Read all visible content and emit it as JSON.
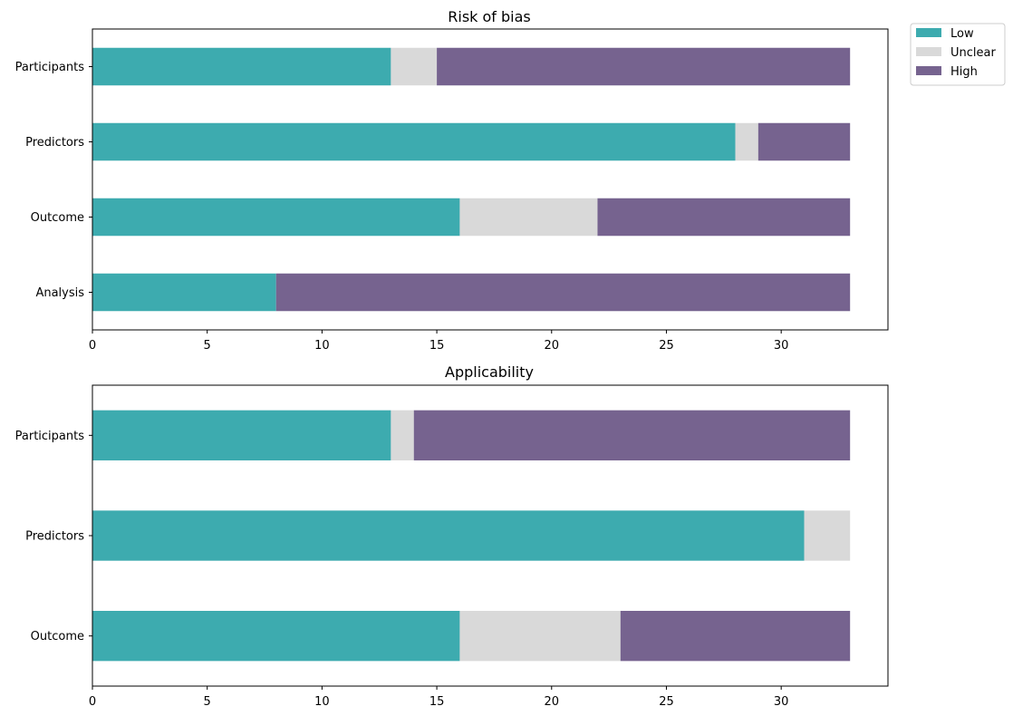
{
  "colors": {
    "low": "#3dabaf",
    "unclear": "#d9d9d9",
    "high": "#76638f"
  },
  "legend": {
    "items": [
      {
        "label": "Low",
        "color_key": "low"
      },
      {
        "label": "Unclear",
        "color_key": "unclear"
      },
      {
        "label": "High",
        "color_key": "high"
      }
    ]
  },
  "chart_data": [
    {
      "type": "bar",
      "orientation": "horizontal",
      "stacked": true,
      "title": "Risk of bias",
      "categories": [
        "Participants",
        "Predictors",
        "Outcome",
        "Analysis"
      ],
      "series": [
        {
          "name": "Low",
          "values": [
            13,
            28,
            16,
            8
          ]
        },
        {
          "name": "Unclear",
          "values": [
            2,
            1,
            6,
            0
          ]
        },
        {
          "name": "High",
          "values": [
            18,
            4,
            11,
            25
          ]
        }
      ],
      "xlim": [
        0,
        34.65
      ],
      "xticks": [
        0,
        5,
        10,
        15,
        20,
        25,
        30
      ],
      "xlabel": "",
      "ylabel": ""
    },
    {
      "type": "bar",
      "orientation": "horizontal",
      "stacked": true,
      "title": "Applicability",
      "categories": [
        "Participants",
        "Predictors",
        "Outcome"
      ],
      "series": [
        {
          "name": "Low",
          "values": [
            13,
            31,
            16
          ]
        },
        {
          "name": "Unclear",
          "values": [
            1,
            2,
            7
          ]
        },
        {
          "name": "High",
          "values": [
            19,
            0,
            10
          ]
        }
      ],
      "xlim": [
        0,
        34.65
      ],
      "xticks": [
        0,
        5,
        10,
        15,
        20,
        25,
        30
      ],
      "xlabel": "",
      "ylabel": ""
    }
  ]
}
